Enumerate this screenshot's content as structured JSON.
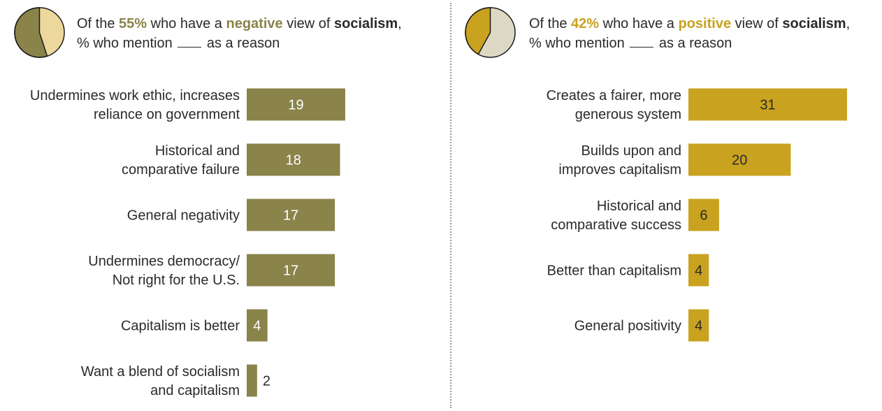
{
  "colors": {
    "negative": "#8a834a",
    "negative_light": "#ecd89d",
    "positive": "#c9a21f",
    "positive_light": "#dcd8c4",
    "text": "#2a2a2a"
  },
  "chart_data": [
    {
      "type": "bar",
      "orientation": "horizontal",
      "pie_share": 55,
      "heading": {
        "prefix": "Of the ",
        "percent": "55%",
        "middle1": " who have a ",
        "keyword": "negative",
        "middle2": " view of ",
        "subject": "socialism",
        "suffix": ",",
        "line2_before": "% who mention ",
        "line2_after": " as a reason"
      },
      "categories": [
        [
          "Undermines work ethic, increases",
          "reliance on government"
        ],
        [
          "Historical and",
          "comparative failure"
        ],
        [
          "General negativity"
        ],
        [
          "Undermines democracy/",
          "Not right for the U.S."
        ],
        [
          "Capitalism is better"
        ],
        [
          "Want a blend of socialism",
          "and capitalism"
        ]
      ],
      "values": [
        19,
        18,
        17,
        17,
        4,
        2
      ],
      "xlim": [
        0,
        31
      ]
    },
    {
      "type": "bar",
      "orientation": "horizontal",
      "pie_share": 42,
      "heading": {
        "prefix": "Of the ",
        "percent": "42%",
        "middle1": " who have a ",
        "keyword": "positive",
        "middle2": " view of ",
        "subject": "socialism",
        "suffix": ",",
        "line2_before": "% who mention ",
        "line2_after": " as a reason"
      },
      "categories": [
        [
          "Creates a fairer, more",
          "generous system"
        ],
        [
          "Builds upon and",
          "improves capitalism"
        ],
        [
          "Historical and",
          "comparative success"
        ],
        [
          "Better than capitalism"
        ],
        [
          "General positivity"
        ]
      ],
      "values": [
        31,
        20,
        6,
        4,
        4
      ],
      "xlim": [
        0,
        31
      ]
    }
  ]
}
